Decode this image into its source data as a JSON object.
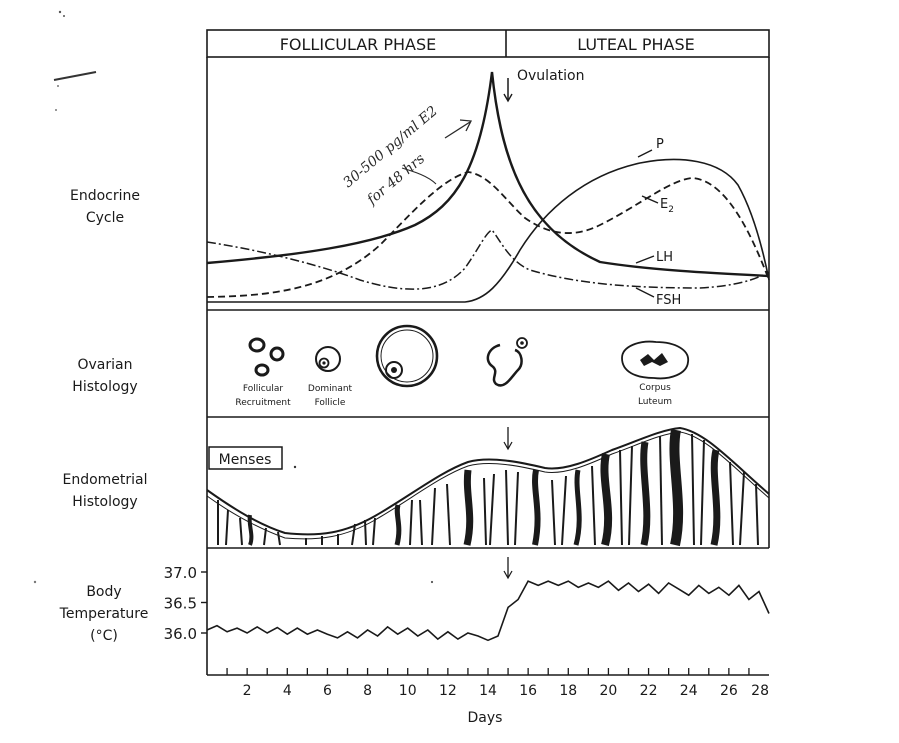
{
  "header": {
    "follicular_label": "FOLLICULAR PHASE",
    "luteal_label": "LUTEAL PHASE"
  },
  "rows": {
    "endocrine": [
      "Endocrine",
      "Cycle"
    ],
    "ovarian": [
      "Ovarian",
      "Histology"
    ],
    "endometrial": [
      "Endometrial",
      "Histology"
    ],
    "temperature": [
      "Body",
      "Temperature",
      "(°C)"
    ]
  },
  "endocrine": {
    "ovulation_label": "Ovulation",
    "handwritten_note": [
      "30-500 pg/ml E2",
      "for 48 hrs"
    ],
    "curves": {
      "P": "P",
      "E2": "E",
      "E2_sub": "2",
      "LH": "LH",
      "FSH": "FSH"
    }
  },
  "ovarian": {
    "follicular_recruitment": [
      "Follicular",
      "Recruitment"
    ],
    "dominant_follicle": [
      "Dominant",
      "Follicle"
    ],
    "corpus_luteum": [
      "Corpus",
      "Luteum"
    ]
  },
  "endometrial": {
    "menses_label": "Menses"
  },
  "chart_data": {
    "type": "line",
    "title": "",
    "xlabel": "Days",
    "ylabel": "",
    "y_tick_labels": [
      "37.0",
      "36.5",
      "36.0"
    ],
    "ylim": [
      35.8,
      37.1
    ],
    "x_tick_labels": [
      "2",
      "4",
      "6",
      "8",
      "10",
      "12",
      "14",
      "16",
      "18",
      "20",
      "22",
      "24",
      "26",
      "28"
    ],
    "xlim": [
      0,
      28
    ],
    "series": [
      {
        "x": [
          0,
          0.5,
          1,
          1.5,
          2,
          2.5,
          3,
          3.5,
          4,
          4.5,
          5,
          5.5,
          6,
          6.5,
          7,
          7.5,
          8,
          8.5,
          9,
          9.5,
          10,
          10.5,
          11,
          11.5,
          12,
          12.5,
          13,
          13.5,
          14,
          14.5,
          15,
          15.5,
          16,
          16.5,
          17,
          17.5,
          18,
          18.5,
          19,
          19.5,
          20,
          20.5,
          21,
          21.5,
          22,
          22.5,
          23,
          23.5,
          24,
          24.5,
          25,
          25.5,
          26,
          26.5,
          27,
          27.5,
          28
        ],
        "values": [
          36.05,
          36.12,
          36.02,
          36.08,
          36.0,
          36.1,
          36.0,
          36.09,
          35.98,
          36.08,
          35.98,
          36.05,
          35.98,
          35.92,
          36.02,
          35.92,
          36.05,
          35.95,
          36.1,
          35.98,
          36.08,
          35.95,
          36.05,
          35.9,
          36.02,
          35.9,
          36.0,
          35.95,
          35.88,
          35.95,
          36.42,
          36.55,
          36.85,
          36.78,
          36.85,
          36.78,
          36.85,
          36.75,
          36.82,
          36.75,
          36.85,
          36.7,
          36.82,
          36.68,
          36.8,
          36.65,
          36.82,
          36.72,
          36.62,
          36.78,
          36.65,
          36.75,
          36.62,
          36.78,
          36.55,
          36.68,
          36.32
        ]
      }
    ],
    "grid": false,
    "ovulation_day": 14.5
  }
}
